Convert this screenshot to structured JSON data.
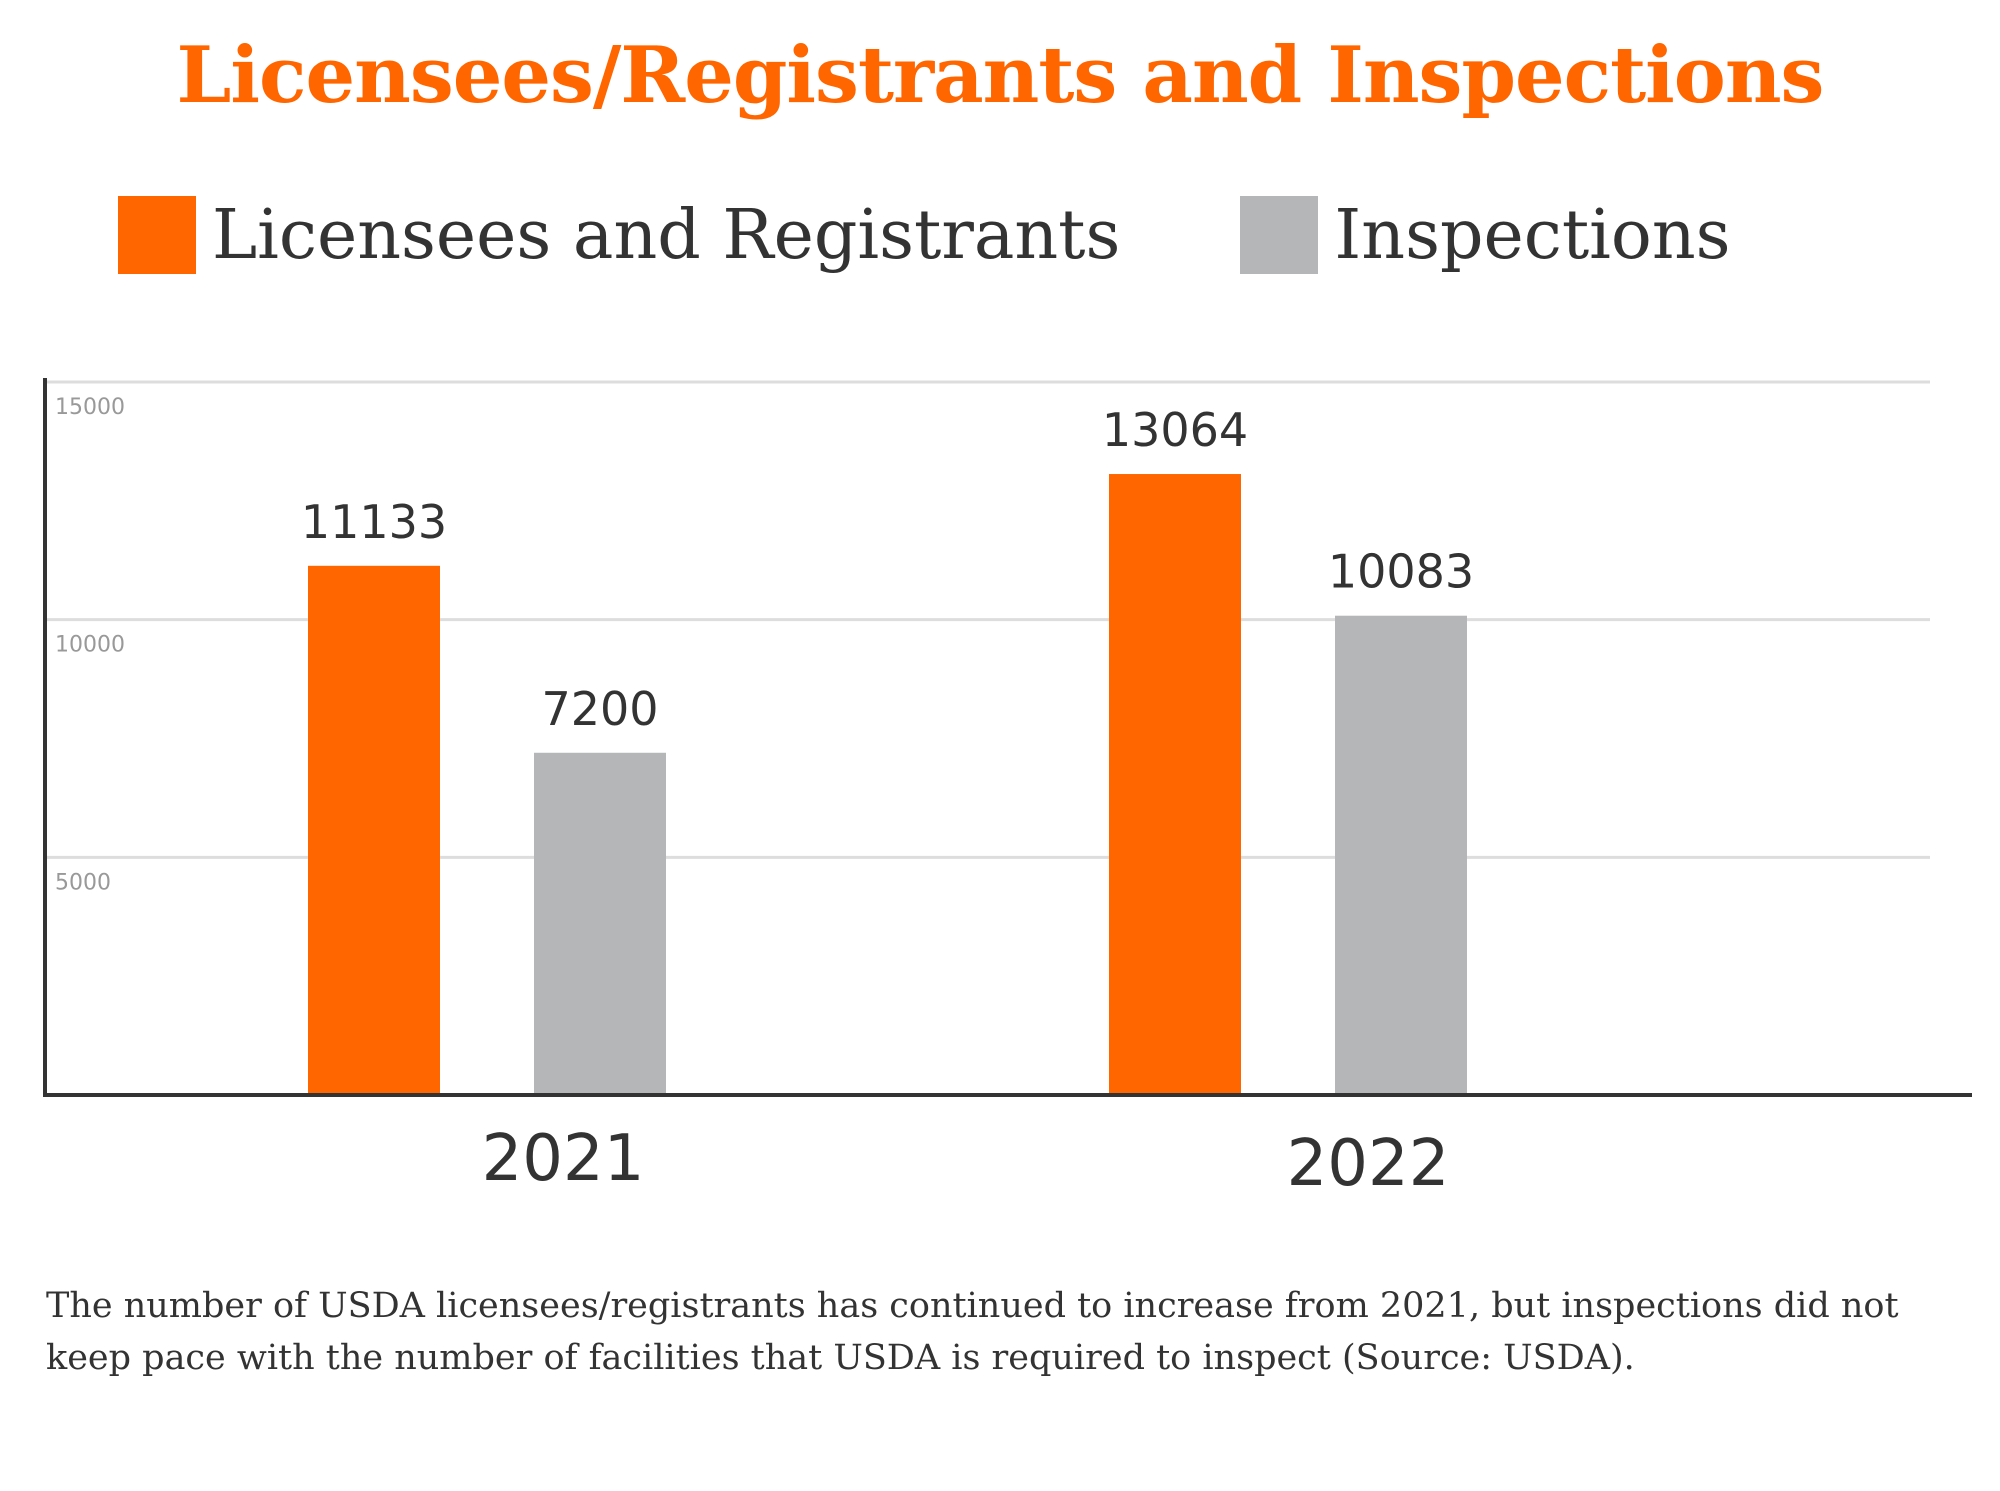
{
  "title": "Licensees/Registrants and Inspections",
  "caption": "The number of USDA licensees/registrants has continued to increase from 2021, but inspections did not keep pace with the number of facilities that USDA is required to inspect (Source: USDA).",
  "colors": {
    "title": "#ff6600",
    "licensees": "#ff6600",
    "inspections": "#b5b6b8",
    "text": "#333333",
    "tick_text": "#999999",
    "grid": "#dddddd",
    "axis": "#333333"
  },
  "chart_data": {
    "type": "bar",
    "title": "Licensees/Registrants and Inspections",
    "xlabel": "",
    "ylabel": "",
    "categories": [
      "2021",
      "2022"
    ],
    "series": [
      {
        "name": "Licensees and Registrants",
        "values": [
          11133,
          13064
        ],
        "color": "#ff6600"
      },
      {
        "name": "Inspections",
        "values": [
          7200,
          10083
        ],
        "color": "#b5b6b8"
      }
    ],
    "data_labels": [
      [
        "11133",
        "13064"
      ],
      [
        "7200",
        "10083"
      ]
    ],
    "ylim": [
      0,
      15000
    ],
    "yticks": [
      5000,
      10000,
      15000
    ],
    "ytick_labels": [
      "5000",
      "10000",
      "15000"
    ],
    "grid": true,
    "legend": "top"
  }
}
